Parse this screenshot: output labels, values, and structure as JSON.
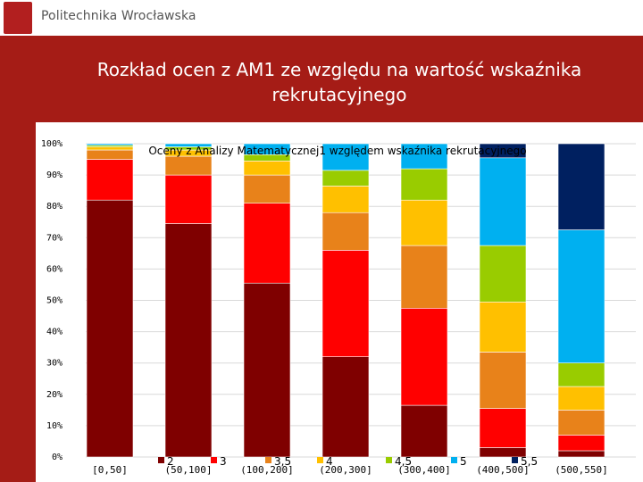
{
  "header": {
    "logo_text": "Politechnika Wrocławska"
  },
  "slide": {
    "title_line1": "Rozkład ocen z AM1 ze względu na  wartość wskaźnika",
    "title_line2": "rekrutacyjnego"
  },
  "chart_data": {
    "type": "bar",
    "stacked": true,
    "percent": true,
    "title": "Oceny z Analizy Matematycznej1 względem wskaźnika rekrutacyjnego",
    "categories": [
      "[0,50]",
      "(50,100]",
      "(100,200]",
      "(200,300]",
      "(300,400]",
      "(400,500]",
      "(500,550]"
    ],
    "yticks": [
      "0%",
      "10%",
      "20%",
      "30%",
      "40%",
      "50%",
      "60%",
      "70%",
      "80%",
      "90%",
      "100%"
    ],
    "ylim": [
      0,
      100
    ],
    "series": [
      {
        "name": "2",
        "color": "#7f0000",
        "values": [
          82,
          74.5,
          55.5,
          32,
          16.5,
          3,
          2
        ]
      },
      {
        "name": "3",
        "color": "#ff0000",
        "values": [
          13,
          15.5,
          25.5,
          34,
          31,
          12.5,
          5
        ]
      },
      {
        "name": "3,5",
        "color": "#e8821a",
        "values": [
          3,
          6,
          9,
          12,
          20,
          18,
          8
        ]
      },
      {
        "name": "4",
        "color": "#ffc000",
        "values": [
          1,
          2,
          4.5,
          8.5,
          14.5,
          16,
          7.5
        ]
      },
      {
        "name": "4,5",
        "color": "#99cc00",
        "values": [
          0.5,
          1,
          2,
          5,
          10,
          18,
          7.5
        ]
      },
      {
        "name": "5",
        "color": "#00b0f0",
        "values": [
          0.5,
          1,
          3.5,
          8.5,
          8,
          28,
          42.5
        ]
      },
      {
        "name": "5,5",
        "color": "#002060",
        "values": [
          0,
          0,
          0,
          0,
          0,
          4.5,
          27.5
        ]
      }
    ],
    "legend_position": "bottom"
  }
}
